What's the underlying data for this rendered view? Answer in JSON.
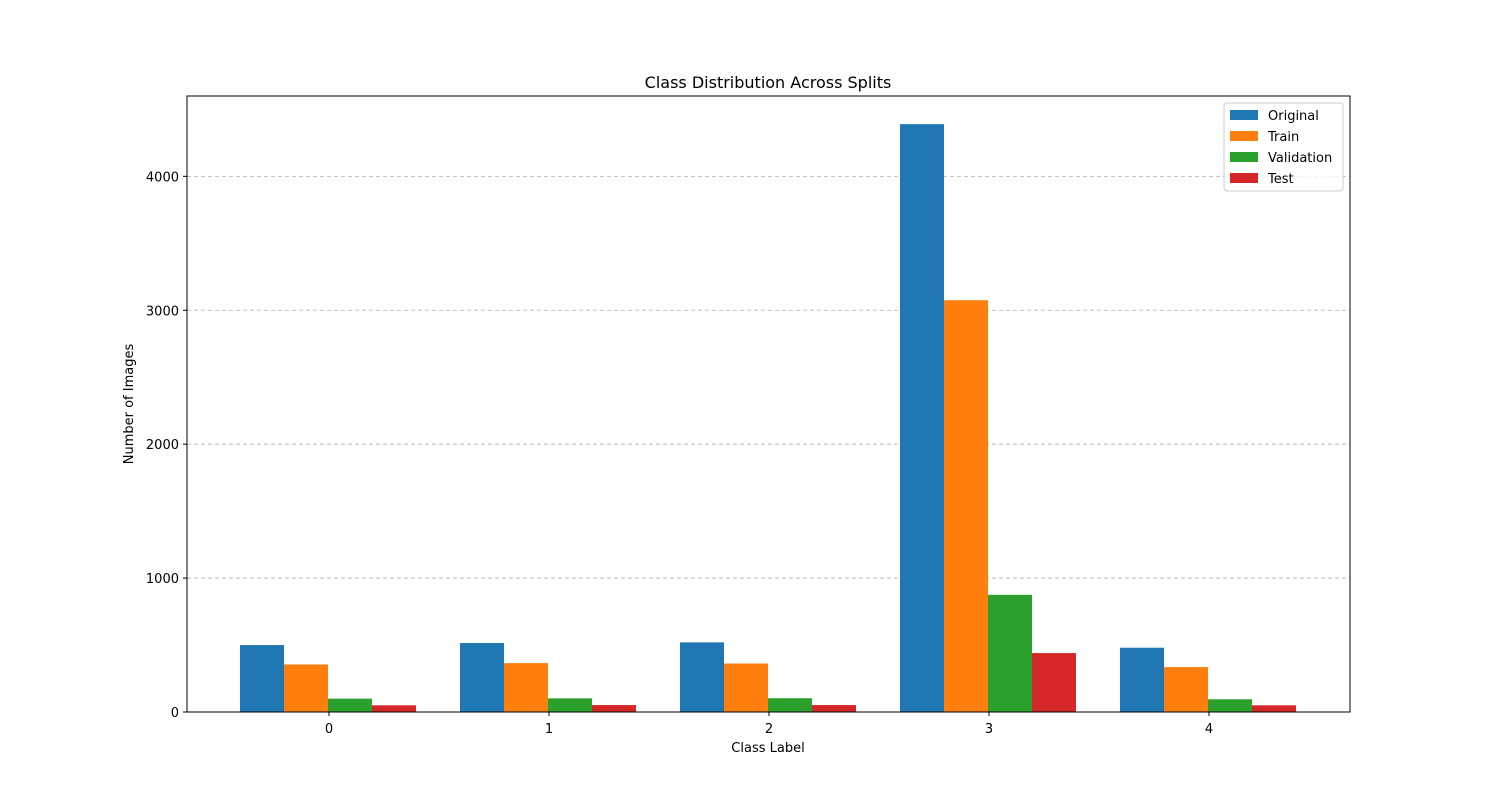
{
  "chart_data": {
    "type": "bar",
    "title": "Class Distribution Across Splits",
    "xlabel": "Class Label",
    "ylabel": "Number of Images",
    "categories": [
      "0",
      "1",
      "2",
      "3",
      "4"
    ],
    "series": [
      {
        "name": "Original",
        "color": "#1f77b4",
        "values": [
          500,
          515,
          520,
          4390,
          480
        ]
      },
      {
        "name": "Train",
        "color": "#ff7f0e",
        "values": [
          355,
          365,
          362,
          3075,
          335
        ]
      },
      {
        "name": "Validation",
        "color": "#2ca02c",
        "values": [
          100,
          102,
          103,
          875,
          95
        ]
      },
      {
        "name": "Test",
        "color": "#d62728",
        "values": [
          50,
          52,
          52,
          440,
          50
        ]
      }
    ],
    "ylim": [
      0,
      4600
    ],
    "yticks": [
      0,
      1000,
      2000,
      3000,
      4000
    ],
    "grid": "y-dashed",
    "legend_position": "top-right"
  }
}
